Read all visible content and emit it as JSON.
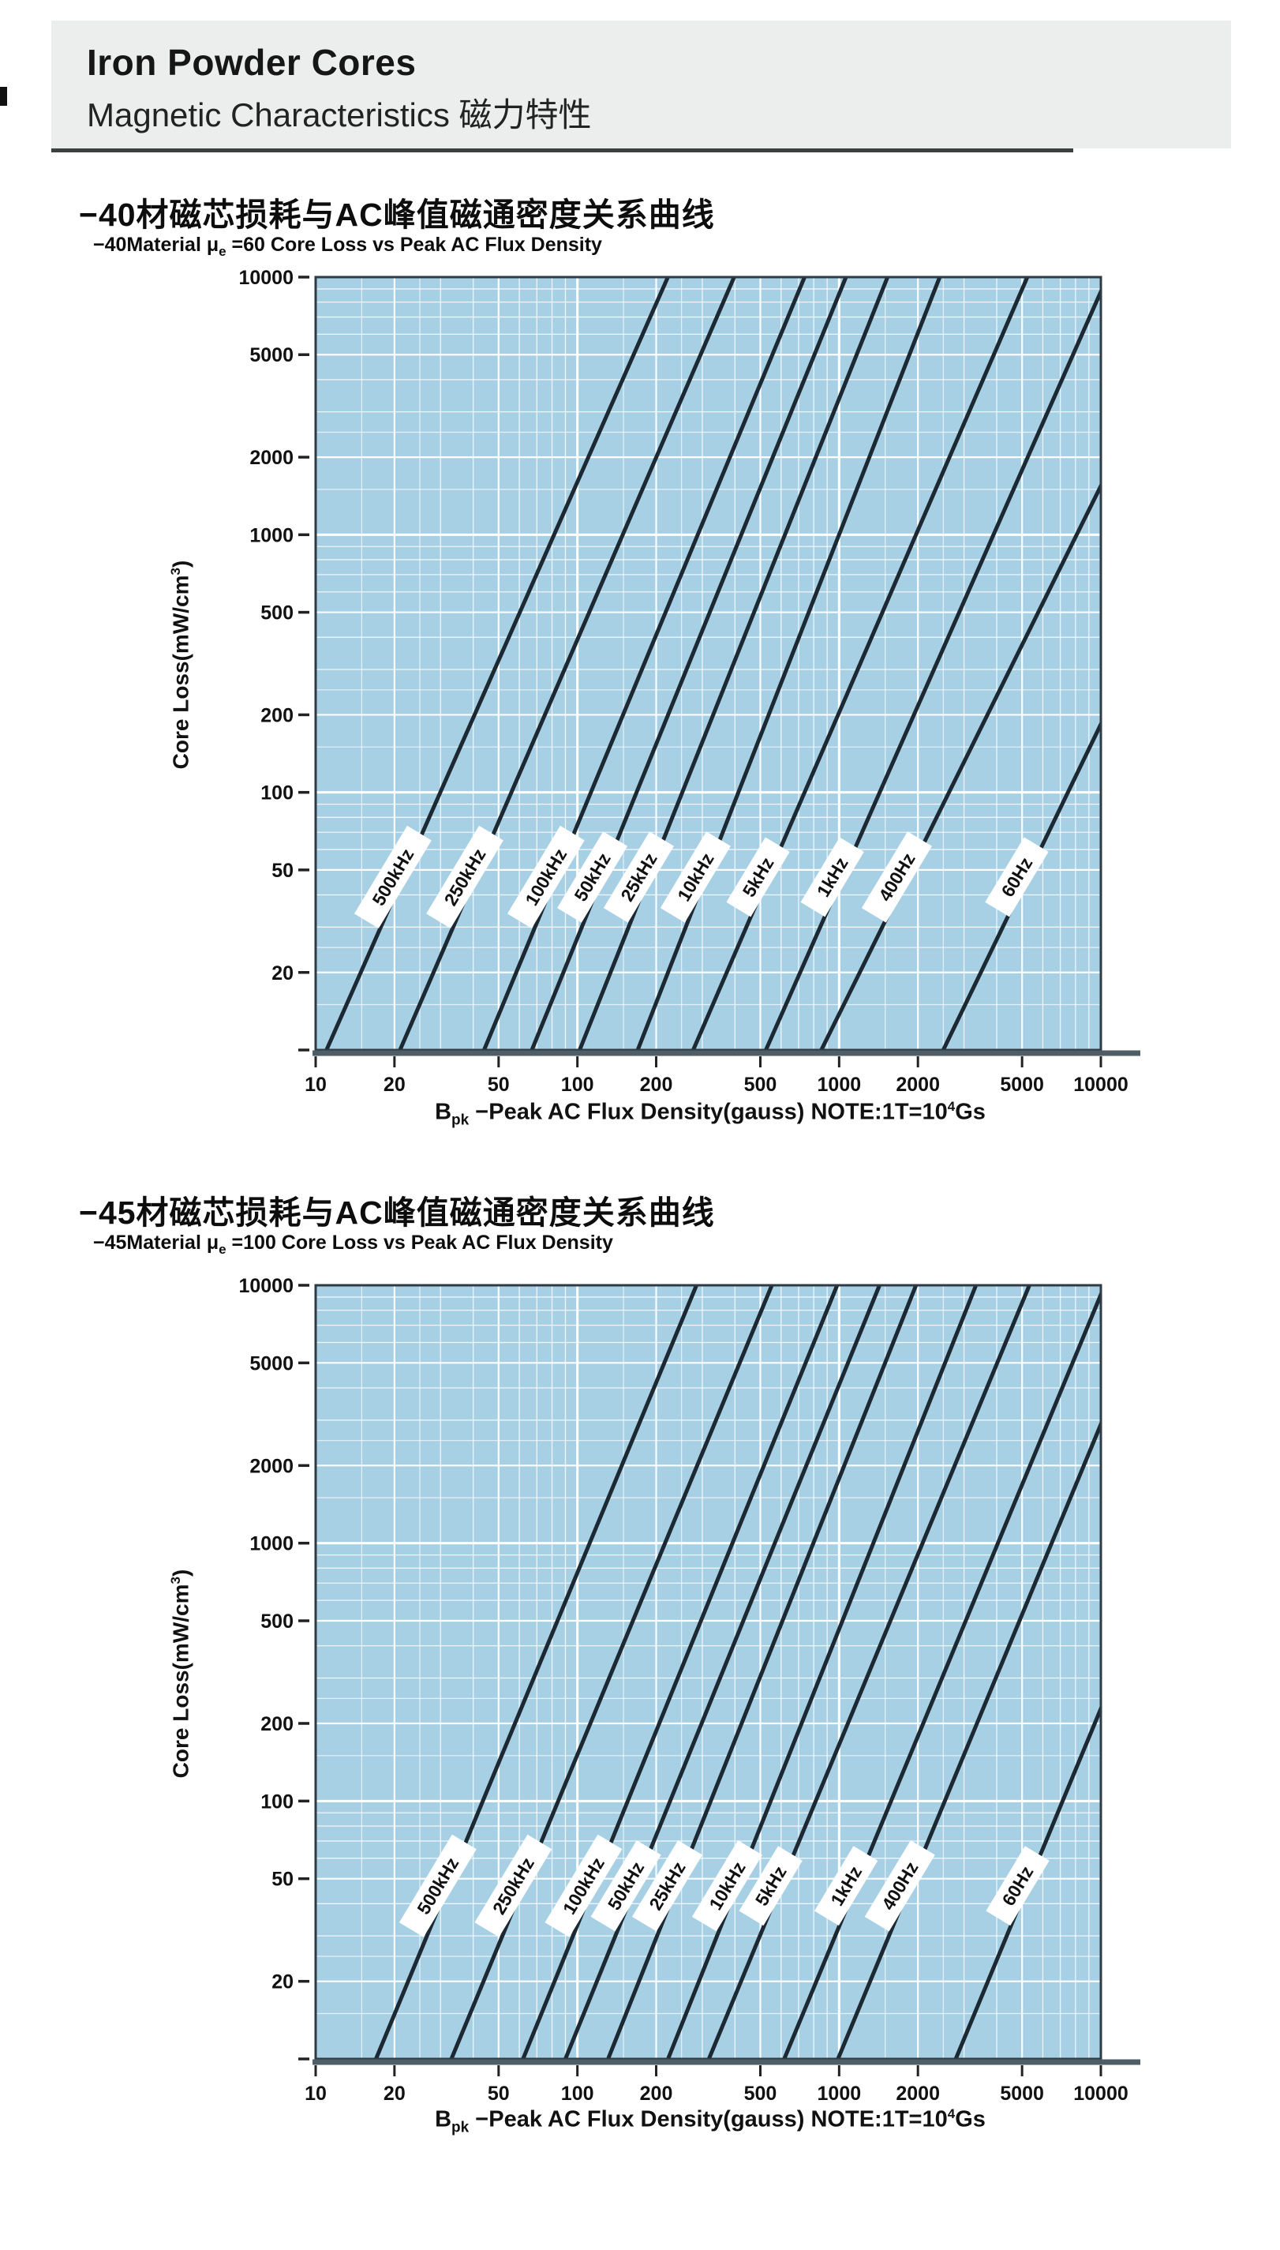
{
  "header": {
    "title": "Iron Powder Cores",
    "subtitle_en": "Magnetic Characteristics",
    "subtitle_zh": "磁力特性",
    "subtitle_full": "Magnetic Characteristics 磁力特性"
  },
  "colors": {
    "plot_bg": "#a8d0e5",
    "grid": "#ffffff",
    "curve": "#1c2933",
    "plot_border": "#2e3a44",
    "axis_bar": "#4e5d66",
    "text": "#111111",
    "header_bg": "#ebeeed",
    "rule": "#3c4140",
    "tag_bg": "#ffffff"
  },
  "chart_data": [
    {
      "type": "line",
      "title_zh": "−40材磁芯损耗与AC峰值磁通密度关系曲线",
      "subtitle": {
        "prefix": "−40Material  ",
        "mu": "μ",
        "mu_sub": "e",
        "rest": " =60 Core Loss vs Peak AC Flux Density"
      },
      "xlabel": {
        "b": "B",
        "b_sub": "pk",
        "mid": " −Peak AC Flux Density(gauss)  NOTE:1T=10",
        "exp": "4",
        "unit": "Gs"
      },
      "ylabel": {
        "pre": "Core Loss(mW/cm",
        "exp": "3",
        "post": ")"
      },
      "x_axis": {
        "scale": "log",
        "range": [
          10,
          10000
        ],
        "ticks": [
          10,
          20,
          50,
          100,
          200,
          500,
          1000,
          2000,
          5000,
          10000
        ],
        "unit": "gauss",
        "grid": true
      },
      "y_axis": {
        "scale": "log",
        "range": [
          10,
          10000
        ],
        "labeled_ticks": [
          10000,
          5000,
          2000,
          1000,
          500,
          200,
          100,
          50,
          20
        ],
        "dash_only_tick": 10,
        "unit": "mW/cm3",
        "grid": true
      },
      "series": [
        {
          "label": "500kHz",
          "b_gauss_at_10mW_cm3": 11,
          "loglog_slope": 2.3
        },
        {
          "label": "250kHz",
          "b_gauss_at_10mW_cm3": 21,
          "loglog_slope": 2.35
        },
        {
          "label": "100kHz",
          "b_gauss_at_10mW_cm3": 44,
          "loglog_slope": 2.45
        },
        {
          "label": "50kHz",
          "b_gauss_at_10mW_cm3": 67,
          "loglog_slope": 2.5
        },
        {
          "label": "25kHz",
          "b_gauss_at_10mW_cm3": 102,
          "loglog_slope": 2.55
        },
        {
          "label": "10kHz",
          "b_gauss_at_10mW_cm3": 170,
          "loglog_slope": 2.6
        },
        {
          "label": "5kHz",
          "b_gauss_at_10mW_cm3": 277,
          "loglog_slope": 2.35
        },
        {
          "label": "1kHz",
          "b_gauss_at_10mW_cm3": 525,
          "loglog_slope": 2.3
        },
        {
          "label": "400Hz",
          "b_gauss_at_10mW_cm3": 855,
          "loglog_slope": 2.05
        },
        {
          "label": "60Hz",
          "b_gauss_at_10mW_cm3": 2500,
          "loglog_slope": 2.1
        }
      ]
    },
    {
      "type": "line",
      "title_zh": "−45材磁芯损耗与AC峰值磁通密度关系曲线",
      "subtitle": {
        "prefix": "−45Material  ",
        "mu": "μ",
        "mu_sub": "e",
        "rest": " =100 Core Loss vs Peak AC Flux Density"
      },
      "xlabel": {
        "b": "B",
        "b_sub": "pk",
        "mid": "  −Peak AC Flux Density(gauss)  NOTE:1T=10",
        "exp": "4",
        "unit": "Gs"
      },
      "ylabel": {
        "pre": "Core Loss(mW/cm",
        "exp": "3",
        "post": ")"
      },
      "x_axis": {
        "scale": "log",
        "range": [
          10,
          10000
        ],
        "ticks": [
          10,
          20,
          50,
          100,
          200,
          500,
          1000,
          2000,
          5000,
          10000
        ],
        "unit": "gauss",
        "grid": true
      },
      "y_axis": {
        "scale": "log",
        "range": [
          10,
          10000
        ],
        "labeled_ticks": [
          10000,
          5000,
          2000,
          1000,
          500,
          200,
          100,
          50,
          20
        ],
        "dash_only_tick": 10,
        "unit": "mW/cm3",
        "grid": true
      },
      "series": [
        {
          "label": "500kHz",
          "b_gauss_at_10mW_cm3": 17,
          "loglog_slope": 2.45
        },
        {
          "label": "250kHz",
          "b_gauss_at_10mW_cm3": 33,
          "loglog_slope": 2.45
        },
        {
          "label": "100kHz",
          "b_gauss_at_10mW_cm3": 62,
          "loglog_slope": 2.5
        },
        {
          "label": "50kHz",
          "b_gauss_at_10mW_cm3": 90,
          "loglog_slope": 2.5
        },
        {
          "label": "25kHz",
          "b_gauss_at_10mW_cm3": 131,
          "loglog_slope": 2.55
        },
        {
          "label": "10kHz",
          "b_gauss_at_10mW_cm3": 222,
          "loglog_slope": 2.55
        },
        {
          "label": "5kHz",
          "b_gauss_at_10mW_cm3": 318,
          "loglog_slope": 2.45
        },
        {
          "label": "1kHz",
          "b_gauss_at_10mW_cm3": 617,
          "loglog_slope": 2.45
        },
        {
          "label": "400Hz",
          "b_gauss_at_10mW_cm3": 990,
          "loglog_slope": 2.45
        },
        {
          "label": "60Hz",
          "b_gauss_at_10mW_cm3": 2790,
          "loglog_slope": 2.45
        }
      ]
    }
  ]
}
